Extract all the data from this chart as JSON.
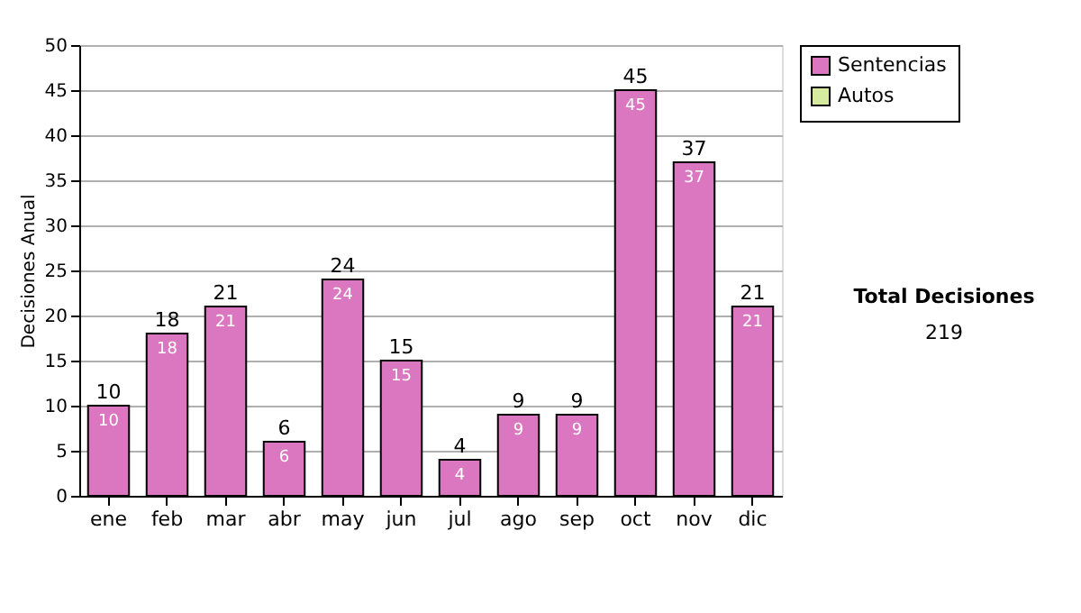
{
  "chart_data": {
    "type": "bar",
    "stacked": true,
    "ylabel": "Decisiones Anual",
    "categories": [
      "ene",
      "feb",
      "mar",
      "abr",
      "may",
      "jun",
      "jul",
      "ago",
      "sep",
      "oct",
      "nov",
      "dic"
    ],
    "series": [
      {
        "name": "Sentencias",
        "color": "#db77c1",
        "values": [
          10,
          18,
          21,
          6,
          24,
          15,
          4,
          9,
          9,
          45,
          37,
          21
        ]
      },
      {
        "name": "Autos",
        "color": "#d6eb9f",
        "values": [
          null,
          null,
          null,
          null,
          null,
          null,
          null,
          null,
          null,
          null,
          null,
          null
        ]
      }
    ],
    "totals": [
      "10",
      "18",
      "21",
      "6",
      "24",
      "15",
      "4",
      "9",
      "9",
      "45",
      "37",
      "21"
    ],
    "data_labels": true,
    "ylim": [
      0,
      50
    ],
    "yticks": [
      0,
      5,
      10,
      15,
      20,
      25,
      30,
      35,
      40,
      45,
      50
    ],
    "grid": "y",
    "legend": "right",
    "annotations": [
      "Total Decisiones",
      "219"
    ]
  }
}
